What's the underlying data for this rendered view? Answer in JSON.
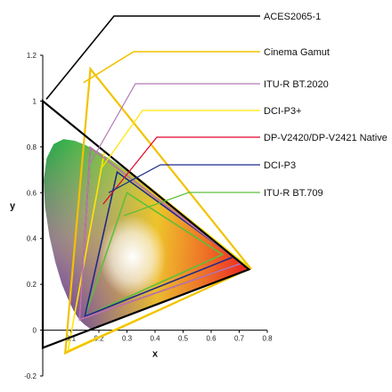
{
  "chart_data": {
    "type": "scatter",
    "title": "",
    "xlabel": "x",
    "ylabel": "y",
    "xlim": [
      0,
      0.8
    ],
    "ylim": [
      -0.2,
      1.2
    ],
    "xticks": [
      "0",
      "0.1",
      "0.2",
      "0.3",
      "0.4",
      "0.5",
      "0.6",
      "0.7",
      "0.8"
    ],
    "yticks": [
      "-0.2",
      "0",
      "0.2",
      "0.4",
      "0.6",
      "0.8",
      "1",
      "1.2"
    ],
    "grid": false,
    "legend_placement": "right, stacked with leader lines",
    "series": [
      {
        "name": "ACES2065-1",
        "color": "#000000",
        "stroke_width": 2.2,
        "points": [
          [
            0.7347,
            0.2653
          ],
          [
            0.0,
            1.0
          ],
          [
            0.0001,
            -0.077
          ]
        ]
      },
      {
        "name": "Cinema Gamut",
        "color": "#f2c200",
        "stroke_width": 2.2,
        "points": [
          [
            0.74,
            0.27
          ],
          [
            0.17,
            1.14
          ],
          [
            0.08,
            -0.1
          ]
        ]
      },
      {
        "name": "ITU-R BT.2020",
        "color": "#b37ab3",
        "stroke_width": 1.6,
        "points": [
          [
            0.708,
            0.292
          ],
          [
            0.17,
            0.797
          ],
          [
            0.131,
            0.046
          ]
        ]
      },
      {
        "name": "DCI-P3+",
        "color": "#ffe600",
        "stroke_width": 1.6,
        "points": [
          [
            0.74,
            0.27
          ],
          [
            0.22,
            0.78
          ],
          [
            0.09,
            -0.09
          ]
        ]
      },
      {
        "name": "DP-V2420/DP-V2421 Native",
        "color": "#e2002b",
        "stroke_width": 1.6,
        "points": [
          [
            0.708,
            0.292
          ],
          [
            0.17,
            0.797
          ],
          [
            0.131,
            0.046
          ]
        ]
      },
      {
        "name": "DCI-P3",
        "color": "#1d2a8c",
        "stroke_width": 1.6,
        "points": [
          [
            0.68,
            0.32
          ],
          [
            0.265,
            0.69
          ],
          [
            0.15,
            0.06
          ]
        ]
      },
      {
        "name": "ITU-R BT.709",
        "color": "#5cbf3a",
        "stroke_width": 1.6,
        "points": [
          [
            0.64,
            0.33
          ],
          [
            0.3,
            0.6
          ],
          [
            0.15,
            0.06
          ]
        ]
      }
    ],
    "spectral_locus": [
      [
        0.1741,
        0.005
      ],
      [
        0.17,
        0.006
      ],
      [
        0.1666,
        0.0089
      ],
      [
        0.1644,
        0.0109
      ],
      [
        0.1611,
        0.0138
      ],
      [
        0.1566,
        0.0177
      ],
      [
        0.151,
        0.0227
      ],
      [
        0.144,
        0.0297
      ],
      [
        0.1355,
        0.0399
      ],
      [
        0.1241,
        0.0578
      ],
      [
        0.1096,
        0.0868
      ],
      [
        0.0913,
        0.1327
      ],
      [
        0.0687,
        0.2007
      ],
      [
        0.0454,
        0.295
      ],
      [
        0.0235,
        0.4127
      ],
      [
        0.0082,
        0.5384
      ],
      [
        0.0039,
        0.6548
      ],
      [
        0.0139,
        0.7502
      ],
      [
        0.0389,
        0.812
      ],
      [
        0.0743,
        0.8338
      ],
      [
        0.1142,
        0.8262
      ],
      [
        0.1547,
        0.8059
      ],
      [
        0.1929,
        0.7816
      ],
      [
        0.2296,
        0.7543
      ],
      [
        0.2658,
        0.7243
      ],
      [
        0.3016,
        0.6923
      ],
      [
        0.3373,
        0.6589
      ],
      [
        0.3731,
        0.6245
      ],
      [
        0.4087,
        0.5896
      ],
      [
        0.4441,
        0.5547
      ],
      [
        0.4788,
        0.5202
      ],
      [
        0.5125,
        0.4866
      ],
      [
        0.5448,
        0.4544
      ],
      [
        0.5752,
        0.4242
      ],
      [
        0.6029,
        0.3965
      ],
      [
        0.627,
        0.3725
      ],
      [
        0.6482,
        0.3514
      ],
      [
        0.6658,
        0.334
      ],
      [
        0.6801,
        0.3197
      ],
      [
        0.6915,
        0.3083
      ],
      [
        0.7006,
        0.2993
      ],
      [
        0.7079,
        0.292
      ],
      [
        0.714,
        0.2859
      ],
      [
        0.719,
        0.2809
      ],
      [
        0.723,
        0.277
      ],
      [
        0.726,
        0.274
      ],
      [
        0.7283,
        0.2717
      ],
      [
        0.73,
        0.27
      ],
      [
        0.7347,
        0.2653
      ]
    ]
  }
}
